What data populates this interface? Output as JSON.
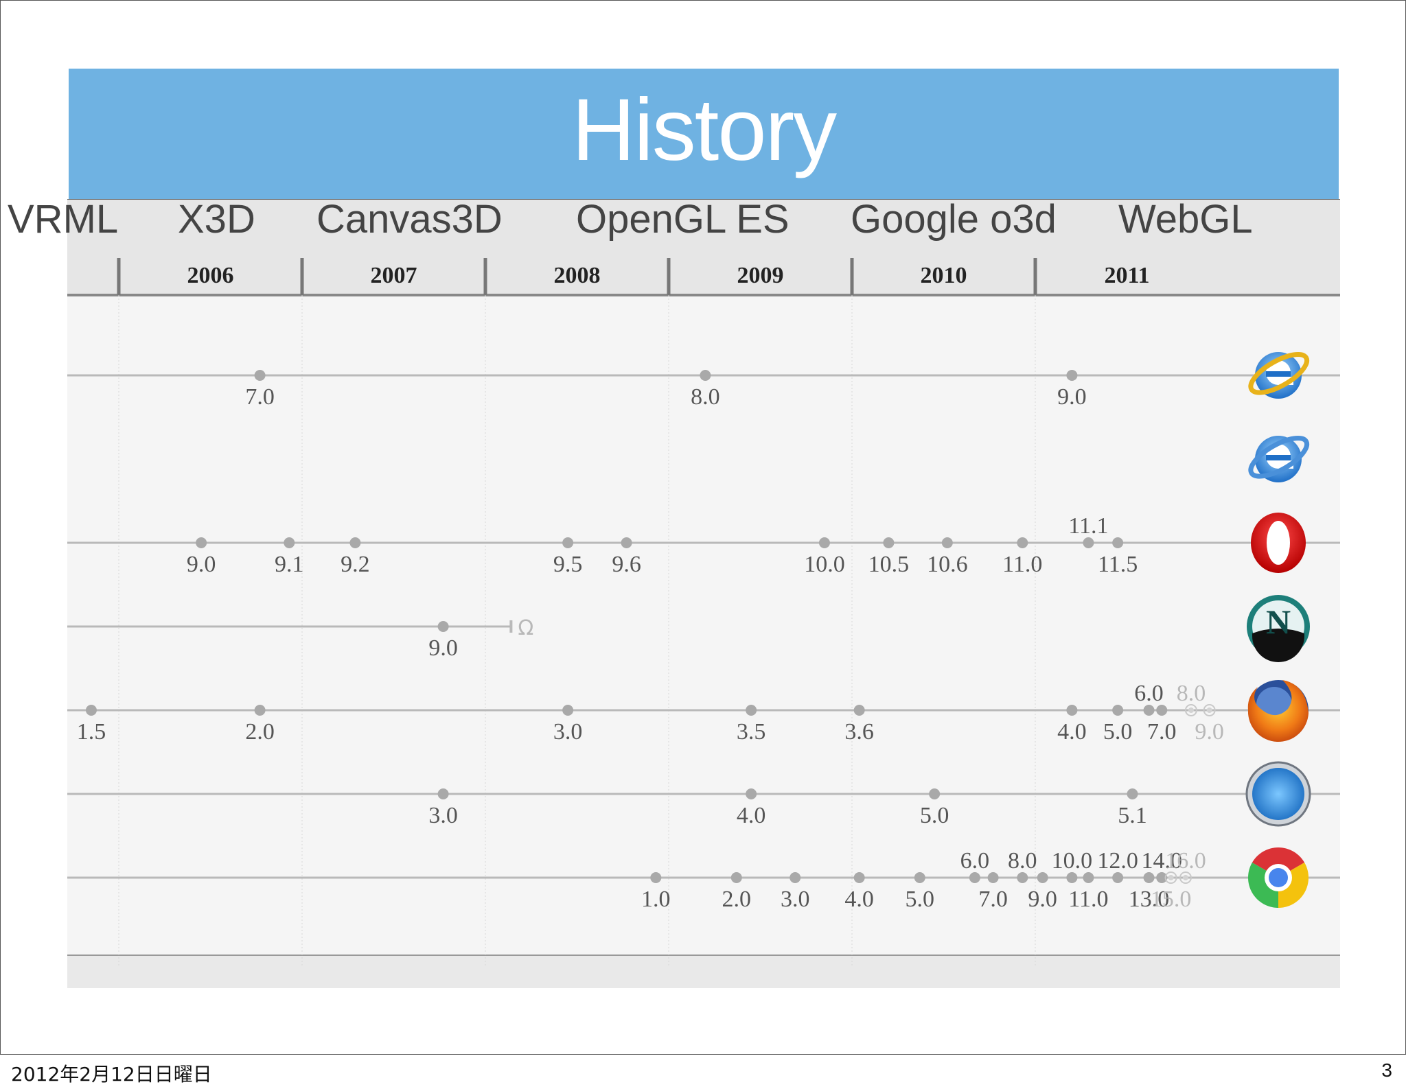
{
  "slide": {
    "title": "History",
    "technologies": [
      "VRML",
      "X3D",
      "Canvas3D",
      "OpenGL ES",
      "Google o3d",
      "WebGL"
    ],
    "footer_date": "2012年2月12日日曜日",
    "page_number": "3"
  },
  "timeline": {
    "years": [
      "2006",
      "2007",
      "2008",
      "2009",
      "2010",
      "2011"
    ],
    "rows": [
      {
        "browser": "Internet Explorer",
        "icon": "ie-gold-icon",
        "releases": [
          {
            "version": "7.0",
            "t": 2006.77,
            "label": "below"
          },
          {
            "version": "8.0",
            "t": 2009.2,
            "label": "below"
          },
          {
            "version": "9.0",
            "t": 2011.2,
            "label": "below"
          }
        ]
      },
      {
        "browser": "Internet Explorer (legacy)",
        "icon": "ie-blue-icon",
        "releases": []
      },
      {
        "browser": "Opera",
        "icon": "opera-icon",
        "releases": [
          {
            "version": "9.0",
            "t": 2006.45,
            "label": "below"
          },
          {
            "version": "9.1",
            "t": 2006.93,
            "label": "below"
          },
          {
            "version": "9.2",
            "t": 2007.29,
            "label": "below"
          },
          {
            "version": "9.5",
            "t": 2008.45,
            "label": "below"
          },
          {
            "version": "9.6",
            "t": 2008.77,
            "label": "below"
          },
          {
            "version": "10.0",
            "t": 2009.85,
            "label": "below"
          },
          {
            "version": "10.5",
            "t": 2010.2,
            "label": "below"
          },
          {
            "version": "10.6",
            "t": 2010.52,
            "label": "below"
          },
          {
            "version": "11.0",
            "t": 2010.93,
            "label": "below"
          },
          {
            "version": "11.1",
            "t": 2011.29,
            "label": "above"
          },
          {
            "version": "11.5",
            "t": 2011.45,
            "label": "below"
          }
        ]
      },
      {
        "browser": "Netscape",
        "icon": "netscape-icon",
        "ends": 2008.14,
        "end_mark": "Ω",
        "releases": [
          {
            "version": "9.0",
            "t": 2007.77,
            "label": "below"
          }
        ]
      },
      {
        "browser": "Firefox",
        "icon": "firefox-icon",
        "releases": [
          {
            "version": "1.5",
            "t": 2005.85,
            "label": "below"
          },
          {
            "version": "2.0",
            "t": 2006.77,
            "label": "below"
          },
          {
            "version": "3.0",
            "t": 2008.45,
            "label": "below"
          },
          {
            "version": "3.5",
            "t": 2009.45,
            "label": "below"
          },
          {
            "version": "3.6",
            "t": 2010.04,
            "label": "below"
          },
          {
            "version": "4.0",
            "t": 2011.2,
            "label": "below"
          },
          {
            "version": "5.0",
            "t": 2011.45,
            "label": "below"
          },
          {
            "version": "6.0",
            "t": 2011.62,
            "label": "above"
          },
          {
            "version": "7.0",
            "t": 2011.69,
            "label": "below"
          },
          {
            "version": "8.0",
            "t": 2011.85,
            "label": "above",
            "future": true
          },
          {
            "version": "9.0",
            "t": 2011.95,
            "label": "below",
            "future": true
          }
        ]
      },
      {
        "browser": "Safari",
        "icon": "safari-icon",
        "releases": [
          {
            "version": "3.0",
            "t": 2007.77,
            "label": "below"
          },
          {
            "version": "4.0",
            "t": 2009.45,
            "label": "below"
          },
          {
            "version": "5.0",
            "t": 2010.45,
            "label": "below"
          },
          {
            "version": "5.1",
            "t": 2011.53,
            "label": "below"
          }
        ]
      },
      {
        "browser": "Chrome",
        "icon": "chrome-icon",
        "releases": [
          {
            "version": "1.0",
            "t": 2008.93,
            "label": "below"
          },
          {
            "version": "2.0",
            "t": 2009.37,
            "label": "below"
          },
          {
            "version": "3.0",
            "t": 2009.69,
            "label": "below"
          },
          {
            "version": "4.0",
            "t": 2010.04,
            "label": "below"
          },
          {
            "version": "5.0",
            "t": 2010.37,
            "label": "below"
          },
          {
            "version": "6.0",
            "t": 2010.67,
            "label": "above"
          },
          {
            "version": "7.0",
            "t": 2010.77,
            "label": "below"
          },
          {
            "version": "8.0",
            "t": 2010.93,
            "label": "above"
          },
          {
            "version": "9.0",
            "t": 2011.04,
            "label": "below"
          },
          {
            "version": "10.0",
            "t": 2011.2,
            "label": "above"
          },
          {
            "version": "11.0",
            "t": 2011.29,
            "label": "below"
          },
          {
            "version": "12.0",
            "t": 2011.45,
            "label": "above"
          },
          {
            "version": "13.0",
            "t": 2011.62,
            "label": "below"
          },
          {
            "version": "14.0",
            "t": 2011.69,
            "label": "above"
          },
          {
            "version": "15.0",
            "t": 2011.74,
            "label": "below",
            "future": true
          },
          {
            "version": "16.0",
            "t": 2011.82,
            "label": "above",
            "future": true
          }
        ]
      }
    ],
    "colors": {
      "title_bar": "#6fb2e2",
      "axis_band": "#e6e6e6",
      "plot_bg": "#f5f5f5",
      "track": "#b9b9b9",
      "dot": "#a9a9a9",
      "label": "#555555",
      "future_label": "#b8b8b8"
    }
  }
}
